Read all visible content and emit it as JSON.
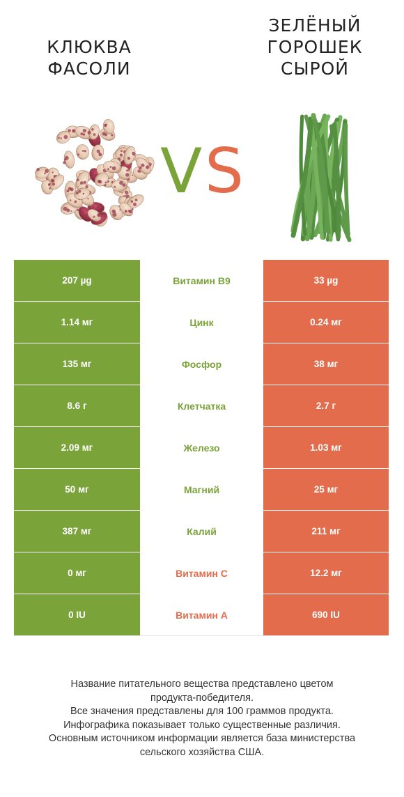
{
  "left_food": {
    "title_lines": [
      "КЛЮКВА",
      "ФАСОЛИ"
    ],
    "color": "#7aa33a"
  },
  "right_food": {
    "title_lines": [
      "ЗЕЛЁНЫЙ",
      "ГОРОШЕК",
      "СЫРОЙ"
    ],
    "color": "#e36c4c"
  },
  "vs": {
    "v": "V",
    "s": "S"
  },
  "rows": [
    {
      "left": "207 µg",
      "nutrient": "Витамин B9",
      "right": "33 µg",
      "winner": "left"
    },
    {
      "left": "1.14 мг",
      "nutrient": "Цинк",
      "right": "0.24 мг",
      "winner": "left"
    },
    {
      "left": "135 мг",
      "nutrient": "Фосфор",
      "right": "38 мг",
      "winner": "left"
    },
    {
      "left": "8.6 г",
      "nutrient": "Клетчатка",
      "right": "2.7 г",
      "winner": "left"
    },
    {
      "left": "2.09 мг",
      "nutrient": "Железо",
      "right": "1.03 мг",
      "winner": "left"
    },
    {
      "left": "50 мг",
      "nutrient": "Магний",
      "right": "25 мг",
      "winner": "left"
    },
    {
      "left": "387 мг",
      "nutrient": "Калий",
      "right": "211 мг",
      "winner": "left"
    },
    {
      "left": "0 мг",
      "nutrient": "Витамин C",
      "right": "12.2 мг",
      "winner": "right"
    },
    {
      "left": "0 IU",
      "nutrient": "Витамин A",
      "right": "690 IU",
      "winner": "right"
    }
  ],
  "footer_lines": [
    "Название питательного вещества представлено цветом",
    "продукта-победителя.",
    "Все значения представлены для 100 граммов продукта.",
    "Инфографика показывает только существенные различия.",
    "Основным источником информации является база министерства",
    "сельского хозяйства США."
  ],
  "icons": {
    "left_image": "pinto-beans-image",
    "right_image": "green-beans-image"
  }
}
